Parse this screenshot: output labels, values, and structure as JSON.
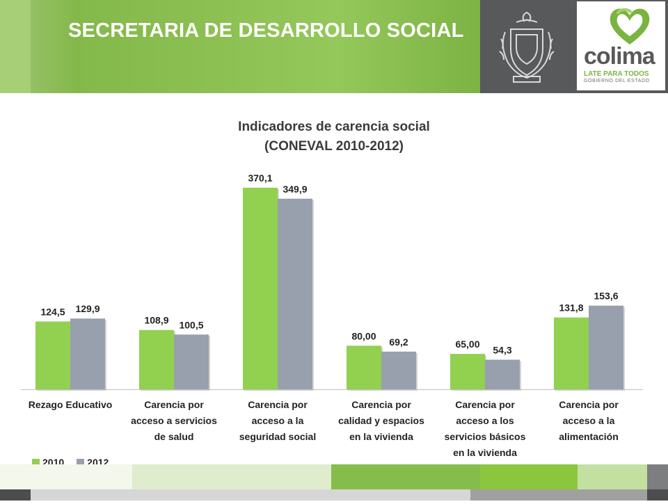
{
  "header": {
    "title": "SECRETARIA DE DESARROLLO SOCIAL"
  },
  "logo": {
    "word": "colima",
    "tagline": "LATE PARA TODOS",
    "subtitle": "GOBIERNO DEL ESTADO"
  },
  "colors": {
    "series_2010": "#92d050",
    "series_2012": "#98a0ae",
    "header_green": "#8cc052",
    "header_gray": "#58595b"
  },
  "chart_data": {
    "type": "bar",
    "title": "Indicadores de carencia social",
    "subtitle": "(CONEVAL 2010-2012)",
    "categories": [
      [
        "Rezago Educativo"
      ],
      [
        "Carencia por",
        "acceso a servicios",
        "de salud"
      ],
      [
        "Carencia por",
        "acceso a la",
        "seguridad social"
      ],
      [
        "Carencia por",
        "calidad y espacios",
        "en la vivienda"
      ],
      [
        "Carencia por",
        "acceso a los",
        "servicios básicos",
        "en la vivienda"
      ],
      [
        "Carencia por",
        "acceso a la",
        "alimentación"
      ]
    ],
    "series": [
      {
        "name": "2010",
        "values": [
          124.5,
          108.9,
          370.1,
          80.0,
          65.0,
          131.8
        ],
        "labels": [
          "124,5",
          "108,9",
          "370,1",
          "80,00",
          "65,00",
          "131,8"
        ]
      },
      {
        "name": "2012",
        "values": [
          129.9,
          100.5,
          349.9,
          69.2,
          54.3,
          153.6
        ],
        "labels": [
          "129,9",
          "100,5",
          "349,9",
          "69,2",
          "54,3",
          "153,6"
        ]
      }
    ],
    "ylim": [
      0,
      370.1
    ],
    "legend": "bottom-left",
    "grid": false
  }
}
